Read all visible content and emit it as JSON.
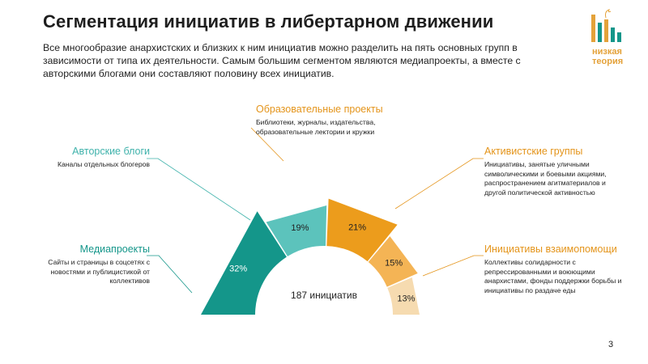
{
  "title": "Сегментация инициатив в либертарном движении",
  "subtitle": "Все многообразие анархистских и близких к ним инициатив можно разделить на пять основных групп в зависимости от типа их деятельности. Самым большим сегментом являются медиапроекты, а вместе с авторскими блогами они составляют половину всех инициатив.",
  "logo": {
    "line1": "низкая",
    "line2": "теория"
  },
  "page_number": "3",
  "chart_data": {
    "type": "pie",
    "shape": "half-donut",
    "center_label": "187 инициатив",
    "segments": [
      {
        "name": "Медиапроекты",
        "value": 32,
        "label": "32%",
        "color": "#14968a",
        "description": "Сайты и страницы в соцсетях с новостями и публицистикой от коллективов"
      },
      {
        "name": "Авторские блоги",
        "value": 19,
        "label": "19%",
        "color": "#5cc3bc",
        "description": "Каналы отдельных блогеров"
      },
      {
        "name": "Образовательные проекты",
        "value": 21,
        "label": "21%",
        "color": "#ec9c1c",
        "description": "Библиотеки, журналы, издательства, образовательные лектории и кружки"
      },
      {
        "name": "Активистские группы",
        "value": 15,
        "label": "15%",
        "color": "#f4b455",
        "description": "Инициативы, занятые уличными символическими и боевыми акциями, распространением агитматериалов и другой политической активностью"
      },
      {
        "name": "Инициативы взаимопомощи",
        "value": 13,
        "label": "13%",
        "color": "#f6dbb0",
        "description": "Коллективы солидарности с репрессированными и воюющими анархистами, фонды поддержки борьбы и инициативы по раздаче еды"
      }
    ]
  }
}
